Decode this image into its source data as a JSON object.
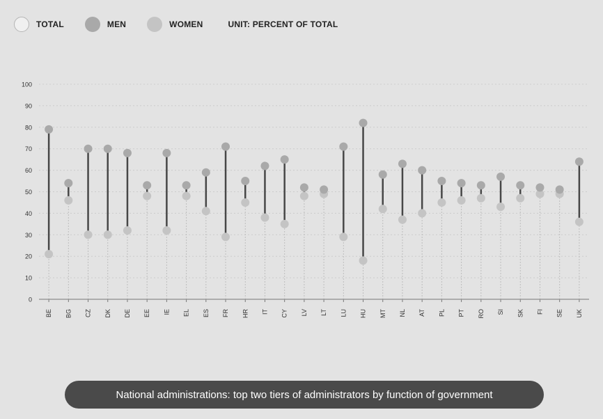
{
  "legend": {
    "total_label": "TOTAL",
    "men_label": "MEN",
    "women_label": "WOMEN",
    "unit_label": "UNIT: PERCENT OF TOTAL"
  },
  "colors": {
    "background": "#e3e3e3",
    "total": "#f0f0f0",
    "men": "#a9a9a9",
    "women": "#c4c4c4",
    "range_line": "#474747",
    "grid": "#cccccc",
    "stem": "#bdbdbd"
  },
  "bottom_tab": {
    "label": "National administrations: top two tiers of administrators by function of government"
  },
  "chart_data": {
    "type": "scatter",
    "title": "",
    "xlabel": "",
    "ylabel": "",
    "ylim": [
      0,
      100
    ],
    "yticks": [
      0,
      10,
      20,
      30,
      40,
      50,
      60,
      70,
      80,
      90,
      100
    ],
    "grid": true,
    "legend_position": "top-left",
    "categories": [
      "BE",
      "BG",
      "CZ",
      "DK",
      "DE",
      "EE",
      "IE",
      "EL",
      "ES",
      "FR",
      "HR",
      "IT",
      "CY",
      "LV",
      "LT",
      "LU",
      "HU",
      "MT",
      "NL",
      "AT",
      "PL",
      "PT",
      "RO",
      "SI",
      "SK",
      "FI",
      "SE",
      "UK"
    ],
    "series": [
      {
        "name": "MEN",
        "values": [
          79,
          54,
          70,
          70,
          68,
          53,
          68,
          53,
          59,
          71,
          55,
          62,
          65,
          52,
          51,
          71,
          82,
          58,
          63,
          60,
          55,
          54,
          53,
          57,
          53,
          52,
          51,
          64
        ]
      },
      {
        "name": "WOMEN",
        "values": [
          21,
          46,
          30,
          30,
          32,
          48,
          32,
          48,
          41,
          29,
          45,
          38,
          35,
          48,
          49,
          29,
          18,
          42,
          37,
          40,
          45,
          46,
          47,
          43,
          47,
          49,
          49,
          36
        ]
      }
    ]
  }
}
